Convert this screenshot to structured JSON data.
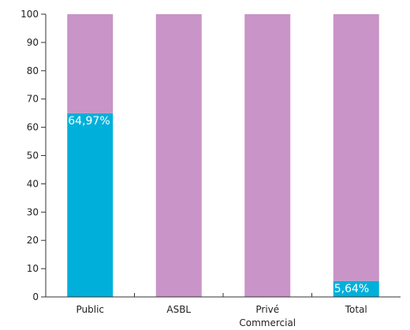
{
  "chart_data": {
    "type": "bar",
    "stacked": true,
    "categories": [
      [
        "Public"
      ],
      [
        "ASBL"
      ],
      [
        "Privé",
        "Commercial"
      ],
      [
        "Total"
      ]
    ],
    "series": [
      {
        "values": [
          64.97,
          0,
          0,
          5.64
        ],
        "color": "#00b0da"
      },
      {
        "values": [
          35.03,
          100,
          100,
          94.36
        ],
        "color": "#c994c7"
      }
    ],
    "data_labels": [
      "64,97%",
      "",
      "",
      "5,64%"
    ],
    "ylim": [
      0,
      100
    ],
    "yticks": [
      0,
      10,
      20,
      30,
      40,
      50,
      60,
      70,
      80,
      90,
      100
    ],
    "grid": false,
    "legend": "none"
  }
}
